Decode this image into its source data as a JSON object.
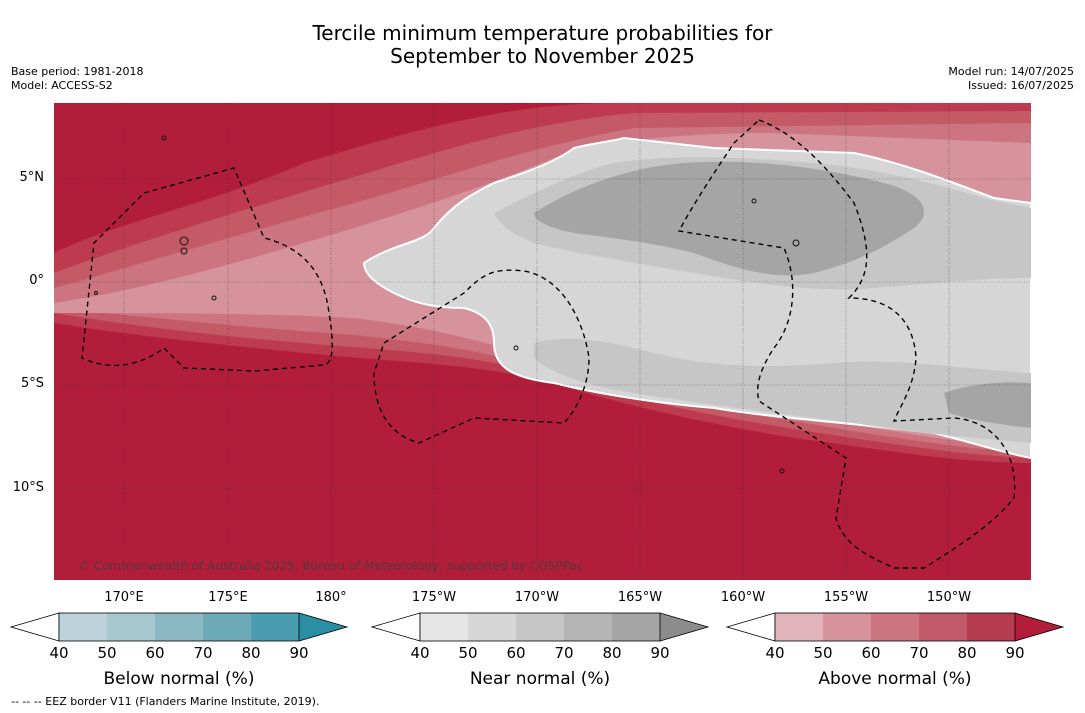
{
  "title": {
    "line1": "Tercile minimum temperature probabilities for",
    "line2": "September to November 2025"
  },
  "meta_left": {
    "base_period": "Base period: 1981-2018",
    "model": "Model: ACCESS-S2"
  },
  "meta_right": {
    "model_run": "Model run: 14/07/2025",
    "issued": "Issued: 16/07/2025"
  },
  "lat_labels": [
    "5°N",
    "0°",
    "5°S",
    "10°S"
  ],
  "lon_labels": [
    "170°E",
    "175°E",
    "180°",
    "175°W",
    "170°W",
    "165°W",
    "160°W",
    "155°W",
    "150°W"
  ],
  "credit": "© Commonwealth of Australia 2025, Bureau of Meteorology, supported by COSPPac",
  "colorbars": [
    {
      "name": "Below normal (%)",
      "ticks": [
        "40",
        "50",
        "60",
        "70",
        "80",
        "90"
      ],
      "colors": [
        "#bcd3db",
        "#a7c8cf",
        "#8ab9c3",
        "#6baab6",
        "#4a9db0",
        "#2a8ea4"
      ]
    },
    {
      "name": "Near normal (%)",
      "ticks": [
        "40",
        "50",
        "60",
        "70",
        "80",
        "90"
      ],
      "colors": [
        "#e5e5e5",
        "#d6d6d6",
        "#c6c6c6",
        "#b5b5b5",
        "#a5a5a5",
        "#8c8c8c"
      ]
    },
    {
      "name": "Above normal (%)",
      "ticks": [
        "40",
        "50",
        "60",
        "70",
        "80",
        "90"
      ],
      "colors": [
        "#e1b4bb",
        "#d6939c",
        "#cc747f",
        "#c25a69",
        "#b83c50",
        "#b21e3a"
      ]
    }
  ],
  "footnote": "--  --  -- EEZ border V11 (Flanders Marine Institute, 2019).",
  "map_colors": {
    "above_90": "#b21e3a",
    "above_80": "#bd3a4f",
    "above_70": "#c55a67",
    "above_60": "#cc747f",
    "above_50": "#d6939c",
    "near_50": "#d6d6d6",
    "near_60": "#c6c6c6",
    "near_80": "#a5a5a5"
  }
}
